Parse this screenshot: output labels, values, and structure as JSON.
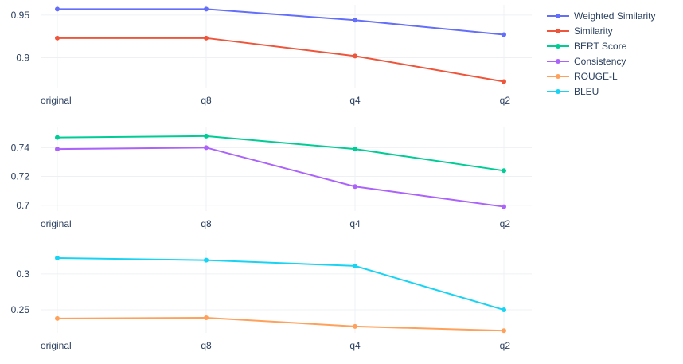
{
  "chart_data": [
    {
      "type": "line",
      "categories": [
        "original",
        "q8",
        "q4",
        "q2"
      ],
      "yticks": [
        0.9,
        0.95
      ],
      "ylim": [
        0.865,
        0.962
      ],
      "grid": true,
      "series": [
        {
          "name": "Weighted Similarity",
          "color": "#636efa",
          "values": [
            0.957,
            0.957,
            0.944,
            0.927
          ]
        },
        {
          "name": "Similarity",
          "color": "#ef553b",
          "values": [
            0.923,
            0.923,
            0.902,
            0.872
          ]
        }
      ]
    },
    {
      "type": "line",
      "categories": [
        "original",
        "q8",
        "q4",
        "q2"
      ],
      "yticks": [
        0.7,
        0.72,
        0.74
      ],
      "ylim": [
        0.696,
        0.754
      ],
      "grid": true,
      "series": [
        {
          "name": "BERT Score",
          "color": "#00cc96",
          "values": [
            0.747,
            0.748,
            0.739,
            0.724
          ]
        },
        {
          "name": "Consistency",
          "color": "#ab63fa",
          "values": [
            0.739,
            0.74,
            0.713,
            0.699
          ]
        }
      ]
    },
    {
      "type": "line",
      "categories": [
        "original",
        "q8",
        "q4",
        "q2"
      ],
      "yticks": [
        0.25,
        0.3
      ],
      "ylim": [
        0.218,
        0.333
      ],
      "grid": true,
      "series": [
        {
          "name": "ROUGE-L",
          "color": "#ffa15a",
          "values": [
            0.238,
            0.239,
            0.227,
            0.221
          ]
        },
        {
          "name": "BLEU",
          "color": "#19d3f3",
          "values": [
            0.322,
            0.319,
            0.311,
            0.25
          ]
        }
      ]
    }
  ],
  "legend": {
    "placement": "top-right",
    "items": [
      {
        "name": "Weighted Similarity",
        "color": "#636efa"
      },
      {
        "name": "Similarity",
        "color": "#ef553b"
      },
      {
        "name": "BERT Score",
        "color": "#00cc96"
      },
      {
        "name": "Consistency",
        "color": "#ab63fa"
      },
      {
        "name": "ROUGE-L",
        "color": "#ffa15a"
      },
      {
        "name": "BLEU",
        "color": "#19d3f3"
      }
    ]
  }
}
